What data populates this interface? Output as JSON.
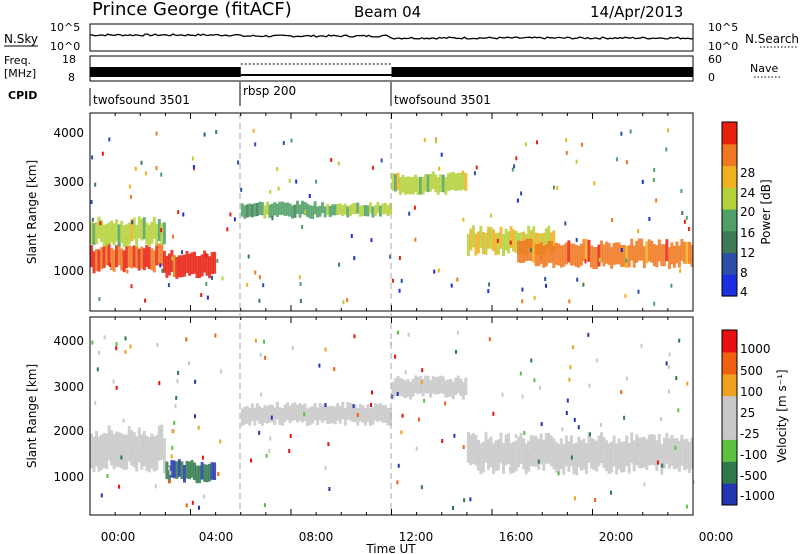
{
  "header": {
    "station": "Prince George (fitACF)",
    "beam": "Beam 04",
    "date": "14/Apr/2013"
  },
  "panels": {
    "noise": {
      "left_label": "N.Sky",
      "right_label": "N.Search",
      "left_ticks": [
        "10^5",
        "10^0"
      ],
      "right_ticks": [
        "10^5",
        "10^0"
      ]
    },
    "freq": {
      "left_label_1": "Freq.",
      "left_label_2": "[MHz]",
      "right_label": "Nave",
      "left_ticks": [
        "18",
        "8"
      ],
      "right_ticks": [
        "60",
        "0"
      ]
    },
    "cpid": {
      "label": "CPID",
      "segments": [
        {
          "name": "twofsound 3501",
          "start_ut": 0
        },
        {
          "name": "rbsp 200",
          "start_ut": 6
        },
        {
          "name": "twofsound 3501",
          "start_ut": 12
        }
      ]
    }
  },
  "power_panel": {
    "ylabel": "Slant Range [km]",
    "yticks": [
      "4000",
      "3000",
      "2000",
      "1000"
    ],
    "colorbar_label": "Power [dB]",
    "colorbar_ticks": [
      "28",
      "24",
      "20",
      "16",
      "12",
      "8",
      "4"
    ],
    "colors": [
      "#1c2fe0",
      "#2d4ea8",
      "#3d7a55",
      "#4fa066",
      "#b5d13a",
      "#f0b020",
      "#f07820",
      "#e82010"
    ]
  },
  "velocity_panel": {
    "ylabel": "Slant Range [km]",
    "yticks": [
      "4000",
      "3000",
      "2000",
      "1000"
    ],
    "colorbar_label": "Velocity [m s⁻¹]",
    "colorbar_ticks": [
      "1000",
      "500",
      "100",
      "25",
      "-25",
      "-100",
      "-500",
      "-1000"
    ],
    "colors": [
      "#2335b0",
      "#2f7a4a",
      "#5cc040",
      "#c8c8c8",
      "#c8c8c8",
      "#f0a020",
      "#f06010",
      "#e81010"
    ]
  },
  "xaxis": {
    "label": "Time UT",
    "ticks": [
      "00:00",
      "04:00",
      "08:00",
      "12:00",
      "16:00",
      "20:00",
      "00:00"
    ]
  },
  "chart_data": [
    {
      "type": "line",
      "title": "N.Sky / N.Search",
      "x_range_ut_hours": [
        0,
        24
      ],
      "note_series": "noise level near 10^0 to 10^5 scale"
    },
    {
      "type": "heatmap",
      "title": "Power [dB]",
      "xlabel": "Time UT",
      "ylabel": "Slant Range [km]",
      "xlim": [
        0,
        24
      ],
      "ylim": [
        0,
        4500
      ],
      "clim": [
        0,
        32
      ],
      "bands": [
        {
          "t0": 0.0,
          "t1": 3.0,
          "r_center": 1200,
          "r_width": 500,
          "value": 28
        },
        {
          "t0": 0.0,
          "t1": 3.0,
          "r_center": 1800,
          "r_width": 500,
          "value": 18
        },
        {
          "t0": 3.0,
          "t1": 5.0,
          "r_center": 1050,
          "r_width": 500,
          "value": 30
        },
        {
          "t0": 6.0,
          "t1": 9.0,
          "r_center": 2300,
          "r_width": 300,
          "value": 14
        },
        {
          "t0": 9.0,
          "t1": 12.0,
          "r_center": 2300,
          "r_width": 250,
          "value": 16
        },
        {
          "t0": 12.0,
          "t1": 15.0,
          "r_center": 2900,
          "r_width": 400,
          "value": 18
        },
        {
          "t0": 15.0,
          "t1": 18.5,
          "r_center": 1600,
          "r_width": 500,
          "value": 20
        },
        {
          "t0": 17.0,
          "t1": 24.0,
          "r_center": 1300,
          "r_width": 500,
          "value": 26
        }
      ]
    },
    {
      "type": "heatmap",
      "title": "Velocity [m s-1]",
      "xlabel": "Time UT",
      "ylabel": "Slant Range [km]",
      "xlim": [
        0,
        24
      ],
      "ylim": [
        0,
        4500
      ],
      "clim": [
        -1000,
        1000
      ],
      "bands": [
        {
          "t0": 0.0,
          "t1": 3.0,
          "r_center": 1500,
          "r_width": 800,
          "value": 0
        },
        {
          "t0": 3.0,
          "t1": 5.0,
          "r_center": 1000,
          "r_width": 400,
          "value": -700
        },
        {
          "t0": 6.0,
          "t1": 12.0,
          "r_center": 2300,
          "r_width": 400,
          "value": 0
        },
        {
          "t0": 12.0,
          "t1": 15.0,
          "r_center": 2900,
          "r_width": 400,
          "value": 0
        },
        {
          "t0": 15.0,
          "t1": 24.0,
          "r_center": 1400,
          "r_width": 700,
          "value": 0
        }
      ]
    }
  ]
}
